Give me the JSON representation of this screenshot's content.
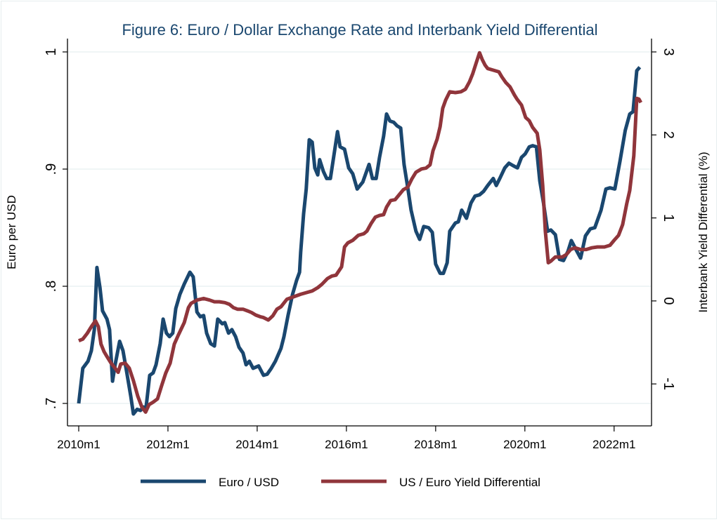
{
  "chart_data": {
    "type": "line",
    "title": "Figure 6: Euro / Dollar Exchange Rate and Interbank Yield Differential",
    "x_unit": "months since 2010m1",
    "xlabel": "",
    "x_ticks": [
      {
        "value": 0,
        "label": "2010m1"
      },
      {
        "value": 24,
        "label": "2012m1"
      },
      {
        "value": 48,
        "label": "2014m1"
      },
      {
        "value": 72,
        "label": "2016m1"
      },
      {
        "value": 96,
        "label": "2018m1"
      },
      {
        "value": 120,
        "label": "2020m1"
      },
      {
        "value": 144,
        "label": "2022m1"
      }
    ],
    "y_left": {
      "label": "Euro per USD",
      "ticks": [
        {
          "value": 1,
          "label": "1"
        },
        {
          "value": 0.9,
          "label": ".9"
        },
        {
          "value": 0.8,
          "label": ".8"
        },
        {
          "value": 0.7,
          "label": ".7"
        }
      ],
      "range": [
        0.69,
        1.01
      ]
    },
    "y_right": {
      "label": "Interbank Yield Differential (%)",
      "ticks": [
        {
          "value": 3,
          "label": "3"
        },
        {
          "value": 2,
          "label": "2"
        },
        {
          "value": 1,
          "label": "1"
        },
        {
          "value": 0,
          "label": "0"
        },
        {
          "value": -1,
          "label": "-1"
        }
      ],
      "range": [
        -1.5,
        3.15
      ]
    },
    "grid": true,
    "legend_position": "bottom",
    "series": [
      {
        "name": "Euro / USD",
        "axis": "left",
        "color": "#1a476f",
        "points": [
          [
            0,
            0.7
          ],
          [
            1.1,
            0.73
          ],
          [
            2.5,
            0.736
          ],
          [
            3.4,
            0.745
          ],
          [
            4.2,
            0.763
          ],
          [
            4.9,
            0.816
          ],
          [
            5.7,
            0.799
          ],
          [
            6.4,
            0.779
          ],
          [
            7.6,
            0.772
          ],
          [
            8.3,
            0.763
          ],
          [
            9.1,
            0.719
          ],
          [
            9.8,
            0.733
          ],
          [
            11,
            0.753
          ],
          [
            11.9,
            0.745
          ],
          [
            12.9,
            0.727
          ],
          [
            14,
            0.706
          ],
          [
            14.7,
            0.691
          ],
          [
            15.7,
            0.695
          ],
          [
            16.6,
            0.694
          ],
          [
            17.4,
            0.697
          ],
          [
            18.1,
            0.696
          ],
          [
            19.1,
            0.724
          ],
          [
            20,
            0.726
          ],
          [
            20.8,
            0.733
          ],
          [
            21.9,
            0.751
          ],
          [
            22.7,
            0.772
          ],
          [
            23.6,
            0.76
          ],
          [
            24.4,
            0.757
          ],
          [
            25.3,
            0.76
          ],
          [
            26.1,
            0.781
          ],
          [
            27.2,
            0.793
          ],
          [
            28.4,
            0.802
          ],
          [
            29.9,
            0.812
          ],
          [
            30.8,
            0.808
          ],
          [
            31.8,
            0.778
          ],
          [
            32.7,
            0.774
          ],
          [
            33.6,
            0.775
          ],
          [
            34.4,
            0.76
          ],
          [
            35.5,
            0.751
          ],
          [
            36.5,
            0.749
          ],
          [
            37.4,
            0.772
          ],
          [
            38.6,
            0.768
          ],
          [
            39.3,
            0.769
          ],
          [
            40.3,
            0.76
          ],
          [
            41.2,
            0.763
          ],
          [
            42.2,
            0.757
          ],
          [
            43.1,
            0.748
          ],
          [
            44.2,
            0.743
          ],
          [
            45,
            0.733
          ],
          [
            45.9,
            0.736
          ],
          [
            46.9,
            0.73
          ],
          [
            48.4,
            0.732
          ],
          [
            49.7,
            0.724
          ],
          [
            50.7,
            0.725
          ],
          [
            51.8,
            0.73
          ],
          [
            52.9,
            0.736
          ],
          [
            54.4,
            0.747
          ],
          [
            55.2,
            0.757
          ],
          [
            56.3,
            0.775
          ],
          [
            57.5,
            0.793
          ],
          [
            58.6,
            0.805
          ],
          [
            59.4,
            0.812
          ],
          [
            59.7,
            0.829
          ],
          [
            60.5,
            0.862
          ],
          [
            61.2,
            0.883
          ],
          [
            62,
            0.925
          ],
          [
            62.8,
            0.923
          ],
          [
            63.5,
            0.901
          ],
          [
            64.3,
            0.895
          ],
          [
            64.8,
            0.908
          ],
          [
            65.8,
            0.898
          ],
          [
            66.7,
            0.892
          ],
          [
            67.7,
            0.892
          ],
          [
            69.6,
            0.932
          ],
          [
            70.3,
            0.919
          ],
          [
            71.5,
            0.917
          ],
          [
            72.6,
            0.901
          ],
          [
            73.7,
            0.896
          ],
          [
            74.9,
            0.883
          ],
          [
            76.4,
            0.889
          ],
          [
            78.1,
            0.904
          ],
          [
            79,
            0.892
          ],
          [
            80,
            0.892
          ],
          [
            80.9,
            0.91
          ],
          [
            82,
            0.928
          ],
          [
            82.8,
            0.947
          ],
          [
            83.7,
            0.941
          ],
          [
            84.7,
            0.94
          ],
          [
            85.6,
            0.937
          ],
          [
            86.6,
            0.935
          ],
          [
            87.5,
            0.904
          ],
          [
            88.5,
            0.884
          ],
          [
            89.4,
            0.865
          ],
          [
            90.7,
            0.847
          ],
          [
            91.7,
            0.84
          ],
          [
            92.8,
            0.851
          ],
          [
            94.1,
            0.85
          ],
          [
            95.1,
            0.846
          ],
          [
            96,
            0.819
          ],
          [
            97.2,
            0.811
          ],
          [
            98.1,
            0.811
          ],
          [
            99.1,
            0.82
          ],
          [
            99.8,
            0.847
          ],
          [
            101.3,
            0.854
          ],
          [
            102.1,
            0.855
          ],
          [
            103,
            0.865
          ],
          [
            104.3,
            0.858
          ],
          [
            105.5,
            0.871
          ],
          [
            106.6,
            0.877
          ],
          [
            107.8,
            0.878
          ],
          [
            108.9,
            0.881
          ],
          [
            110,
            0.886
          ],
          [
            111.5,
            0.892
          ],
          [
            112.3,
            0.886
          ],
          [
            113.4,
            0.893
          ],
          [
            114.6,
            0.901
          ],
          [
            115.7,
            0.905
          ],
          [
            116.8,
            0.903
          ],
          [
            118,
            0.901
          ],
          [
            119.1,
            0.91
          ],
          [
            120.1,
            0.913
          ],
          [
            121.2,
            0.919
          ],
          [
            122.1,
            0.92
          ],
          [
            123.1,
            0.919
          ],
          [
            124,
            0.89
          ],
          [
            125,
            0.871
          ],
          [
            126.1,
            0.847
          ],
          [
            127,
            0.848
          ],
          [
            128.2,
            0.844
          ],
          [
            129.3,
            0.823
          ],
          [
            130.4,
            0.822
          ],
          [
            131.6,
            0.83
          ],
          [
            132.5,
            0.839
          ],
          [
            133.8,
            0.831
          ],
          [
            135,
            0.824
          ],
          [
            136.3,
            0.843
          ],
          [
            137.6,
            0.849
          ],
          [
            138.8,
            0.85
          ],
          [
            140.5,
            0.865
          ],
          [
            141.8,
            0.883
          ],
          [
            142.9,
            0.884
          ],
          [
            144.2,
            0.883
          ],
          [
            145.6,
            0.907
          ],
          [
            147,
            0.933
          ],
          [
            148.2,
            0.947
          ],
          [
            149.1,
            0.949
          ],
          [
            150.1,
            0.984
          ],
          [
            150.9,
            0.987
          ]
        ]
      },
      {
        "name": "US / Euro Yield Differential",
        "axis": "right",
        "color": "#90353b",
        "points": [
          [
            0,
            -0.48
          ],
          [
            1.1,
            -0.46
          ],
          [
            2.3,
            -0.39
          ],
          [
            3.4,
            -0.31
          ],
          [
            4.5,
            -0.24
          ],
          [
            5.3,
            -0.31
          ],
          [
            6,
            -0.52
          ],
          [
            6.8,
            -0.61
          ],
          [
            7.6,
            -0.67
          ],
          [
            8.7,
            -0.75
          ],
          [
            9.6,
            -0.8
          ],
          [
            10.6,
            -0.86
          ],
          [
            11.3,
            -0.76
          ],
          [
            12.5,
            -0.75
          ],
          [
            13.6,
            -0.81
          ],
          [
            14.7,
            -0.96
          ],
          [
            15.9,
            -1.15
          ],
          [
            17,
            -1.28
          ],
          [
            18,
            -1.34
          ],
          [
            18.9,
            -1.25
          ],
          [
            20,
            -1.22
          ],
          [
            21.2,
            -1.18
          ],
          [
            22.3,
            -1.02
          ],
          [
            23.4,
            -0.87
          ],
          [
            24.6,
            -0.75
          ],
          [
            25.7,
            -0.52
          ],
          [
            26.8,
            -0.41
          ],
          [
            28.4,
            -0.26
          ],
          [
            29.5,
            -0.08
          ],
          [
            30.2,
            -0.03
          ],
          [
            31.8,
            0.01
          ],
          [
            33.6,
            0.03
          ],
          [
            35.2,
            0.01
          ],
          [
            36.5,
            -0.01
          ],
          [
            37.8,
            -0.01
          ],
          [
            39.3,
            -0.02
          ],
          [
            40.5,
            -0.04
          ],
          [
            41.6,
            -0.08
          ],
          [
            42.7,
            -0.1
          ],
          [
            44.2,
            -0.1
          ],
          [
            45.4,
            -0.12
          ],
          [
            46.5,
            -0.14
          ],
          [
            47.6,
            -0.17
          ],
          [
            48.8,
            -0.19
          ],
          [
            49.7,
            -0.2
          ],
          [
            51,
            -0.23
          ],
          [
            52.2,
            -0.18
          ],
          [
            53.3,
            -0.1
          ],
          [
            54.4,
            -0.07
          ],
          [
            56,
            0.02
          ],
          [
            57.8,
            0.05
          ],
          [
            59.7,
            0.08
          ],
          [
            61.2,
            0.1
          ],
          [
            62.8,
            0.12
          ],
          [
            64.3,
            0.16
          ],
          [
            65.4,
            0.2
          ],
          [
            66.9,
            0.27
          ],
          [
            68.1,
            0.3
          ],
          [
            69.2,
            0.31
          ],
          [
            70.7,
            0.41
          ],
          [
            71.5,
            0.65
          ],
          [
            72.4,
            0.7
          ],
          [
            73.7,
            0.73
          ],
          [
            75.2,
            0.79
          ],
          [
            76.7,
            0.81
          ],
          [
            77.5,
            0.84
          ],
          [
            78.6,
            0.93
          ],
          [
            79.8,
            1.01
          ],
          [
            80.9,
            1.03
          ],
          [
            82,
            1.04
          ],
          [
            82.8,
            1.13
          ],
          [
            83.9,
            1.21
          ],
          [
            85.1,
            1.22
          ],
          [
            86.2,
            1.28
          ],
          [
            87.3,
            1.34
          ],
          [
            88.5,
            1.37
          ],
          [
            89.6,
            1.47
          ],
          [
            90.7,
            1.55
          ],
          [
            92.2,
            1.59
          ],
          [
            93.4,
            1.6
          ],
          [
            94.5,
            1.64
          ],
          [
            95.3,
            1.81
          ],
          [
            96.4,
            1.95
          ],
          [
            97.2,
            2.1
          ],
          [
            97.9,
            2.32
          ],
          [
            98.7,
            2.42
          ],
          [
            99.8,
            2.52
          ],
          [
            101.3,
            2.51
          ],
          [
            102.8,
            2.52
          ],
          [
            104,
            2.55
          ],
          [
            105.1,
            2.64
          ],
          [
            106,
            2.74
          ],
          [
            107,
            2.88
          ],
          [
            107.8,
            2.99
          ],
          [
            108.5,
            2.91
          ],
          [
            109.3,
            2.84
          ],
          [
            110,
            2.8
          ],
          [
            111.5,
            2.78
          ],
          [
            113,
            2.76
          ],
          [
            113.8,
            2.7
          ],
          [
            114.9,
            2.63
          ],
          [
            116,
            2.58
          ],
          [
            117.2,
            2.48
          ],
          [
            117.9,
            2.43
          ],
          [
            119.1,
            2.36
          ],
          [
            120.2,
            2.21
          ],
          [
            121.2,
            2.17
          ],
          [
            122.1,
            2.09
          ],
          [
            123.3,
            2.02
          ],
          [
            124,
            1.82
          ],
          [
            124.8,
            1.39
          ],
          [
            125.5,
            0.84
          ],
          [
            126.3,
            0.46
          ],
          [
            127,
            0.48
          ],
          [
            128.2,
            0.53
          ],
          [
            130.1,
            0.53
          ],
          [
            131.2,
            0.56
          ],
          [
            132.3,
            0.62
          ],
          [
            133.5,
            0.64
          ],
          [
            135,
            0.62
          ],
          [
            136.5,
            0.62
          ],
          [
            138,
            0.64
          ],
          [
            139.5,
            0.65
          ],
          [
            141.4,
            0.65
          ],
          [
            142.9,
            0.67
          ],
          [
            144,
            0.73
          ],
          [
            145.2,
            0.79
          ],
          [
            146.3,
            0.92
          ],
          [
            147.4,
            1.17
          ],
          [
            148.2,
            1.33
          ],
          [
            149.3,
            1.75
          ],
          [
            150.1,
            2.44
          ],
          [
            150.7,
            2.43
          ],
          [
            151.2,
            2.39
          ]
        ]
      }
    ]
  }
}
